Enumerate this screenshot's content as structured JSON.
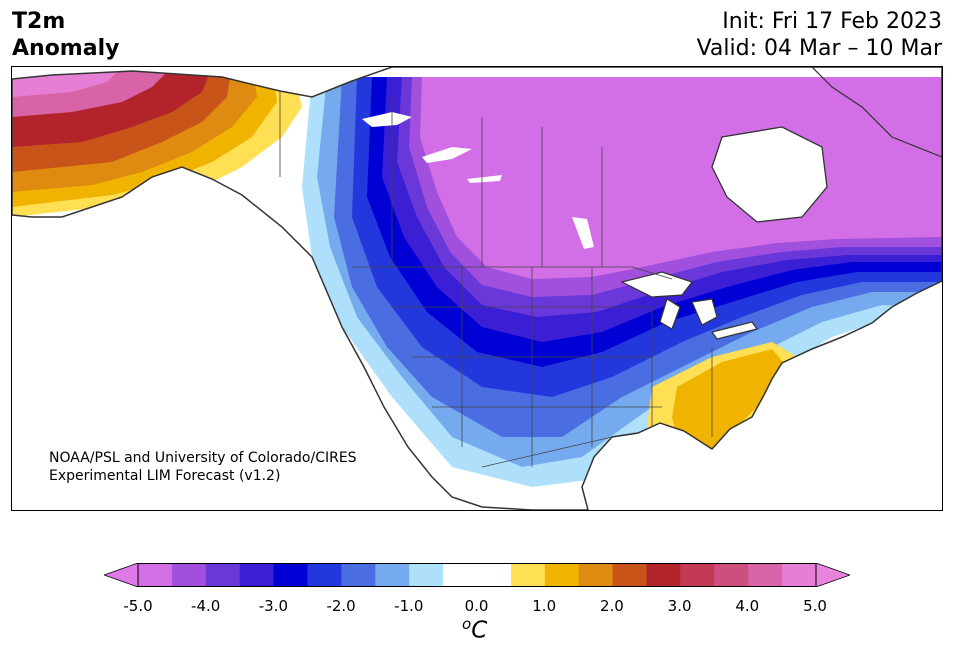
{
  "header": {
    "title_line1": "T2m",
    "title_line2": "Anomaly",
    "init": "Init: Fri 17 Feb 2023",
    "valid": "Valid: 04 Mar – 10 Mar"
  },
  "credit": {
    "line1": "NOAA/PSL and University of Colorado/CIRES",
    "line2": "Experimental LIM Forecast (v1.2)"
  },
  "colorbar": {
    "colors": [
      "#d36fe6",
      "#a050dd",
      "#6a37d8",
      "#3a1fd5",
      "#0000d4",
      "#2338dc",
      "#4a6de2",
      "#76aaee",
      "#aee0fb",
      "#ffffff",
      "#ffffff",
      "#ffe055",
      "#f0b400",
      "#df8a10",
      "#c8541a",
      "#b2242a",
      "#c23a55",
      "#cd4f7d",
      "#d864a7",
      "#e67ed6"
    ],
    "under_color": "#e07ae9",
    "over_color": "#e884dc",
    "tick_labels": [
      "-5.0",
      "-4.0",
      "-3.0",
      "-2.0",
      "-1.0",
      "0.0",
      "1.0",
      "2.0",
      "3.0",
      "4.0",
      "5.0"
    ],
    "unit_sup": "o",
    "unit_main": "C"
  },
  "map_colors": {
    "ocean": "#ffffff",
    "coast": "#333333",
    "lake": "#ffffff"
  }
}
